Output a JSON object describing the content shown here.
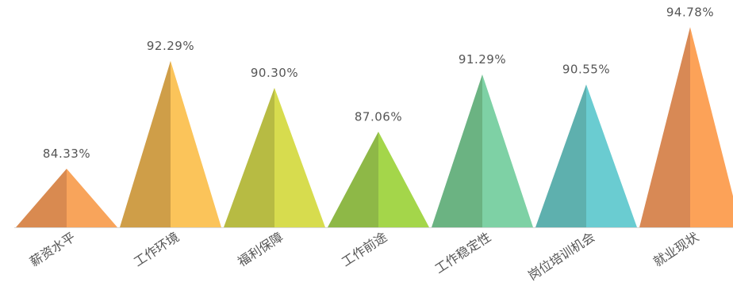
{
  "chart_data": {
    "type": "bar",
    "title": "",
    "xlabel": "",
    "ylabel": "",
    "ylim": [
      80,
      95.5
    ],
    "categories": [
      "薪资水平",
      "工作环境",
      "福利保障",
      "工作前途",
      "工作稳定性",
      "岗位培训机会",
      "就业现状"
    ],
    "values": [
      84.33,
      92.29,
      90.3,
      87.06,
      91.29,
      90.55,
      94.78
    ],
    "labels": [
      "84.33%",
      "92.29%",
      "90.30%",
      "87.06%",
      "91.29%",
      "90.55%",
      "94.78%"
    ],
    "colors": [
      {
        "light": "#F8A45B",
        "dark": "#D98A50"
      },
      {
        "light": "#FBC45A",
        "dark": "#CF9E48"
      },
      {
        "light": "#D7DC4E",
        "dark": "#B7BB43"
      },
      {
        "light": "#A4D64A",
        "dark": "#8EB847"
      },
      {
        "light": "#7ED1A5",
        "dark": "#6BB382"
      },
      {
        "light": "#6ACCD1",
        "dark": "#5EB0AE"
      },
      {
        "light": "#FCA258",
        "dark": "#D88955"
      }
    ]
  }
}
